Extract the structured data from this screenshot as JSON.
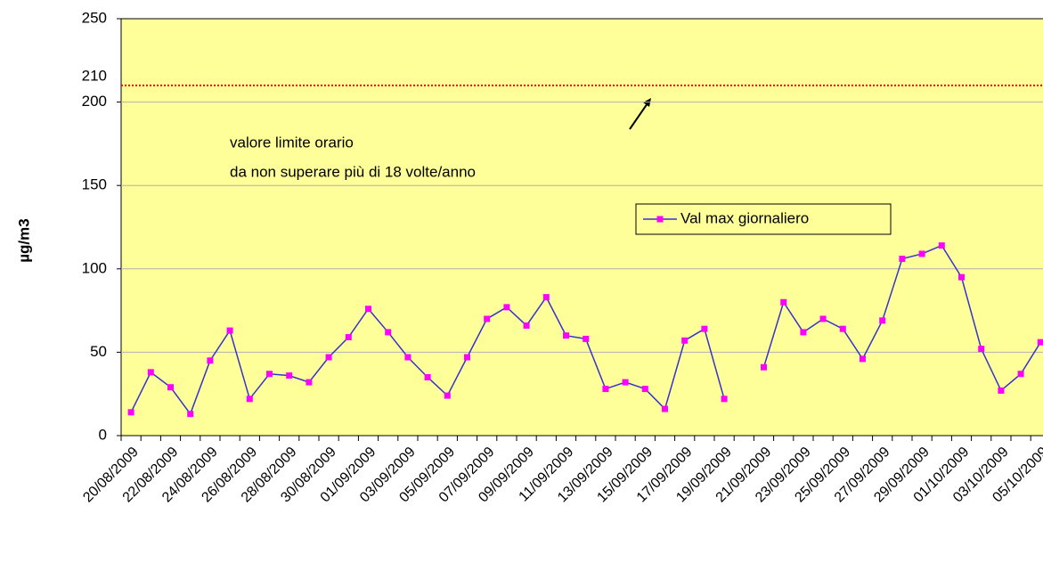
{
  "chart_data": {
    "type": "line",
    "y_label": "µg/m3",
    "categories": [
      "20/08/2009",
      null,
      "22/08/2009",
      null,
      "24/08/2009",
      null,
      "26/08/2009",
      null,
      "28/08/2009",
      null,
      "30/08/2009",
      null,
      "01/09/2009",
      null,
      "03/09/2009",
      null,
      "05/09/2009",
      null,
      "07/09/2009",
      null,
      "09/09/2009",
      null,
      "11/09/2009",
      null,
      "13/09/2009",
      null,
      "15/09/2009",
      null,
      "17/09/2009",
      null,
      "19/09/2009",
      null,
      "21/09/2009",
      null,
      "23/09/2009",
      null,
      "25/09/2009",
      null,
      "27/09/2009",
      null,
      "29/09/2009",
      null,
      "01/10/2009",
      null,
      "03/10/2009",
      null,
      "05/10/2009"
    ],
    "series": [
      {
        "name": "Val max giornaliero",
        "color": "#3333cc",
        "marker_color": "#ff00ff",
        "values": [
          14,
          38,
          29,
          13,
          45,
          63,
          22,
          37,
          36,
          32,
          47,
          59,
          76,
          62,
          47,
          35,
          24,
          47,
          70,
          77,
          66,
          83,
          60,
          58,
          28,
          32,
          28,
          16,
          57,
          64,
          22,
          null,
          41,
          80,
          62,
          70,
          64,
          46,
          69,
          106,
          109,
          114,
          95,
          52,
          27,
          37,
          56
        ]
      }
    ],
    "ylim": [
      0,
      250
    ],
    "yticks": [
      0,
      50,
      100,
      150,
      200,
      250
    ],
    "grid": true,
    "background": "#ffff99",
    "reference_line": {
      "value": 210,
      "color": "#ff0000"
    },
    "annotation": [
      "valore limite orario",
      "da non superare più di 18 volte/anno"
    ]
  }
}
